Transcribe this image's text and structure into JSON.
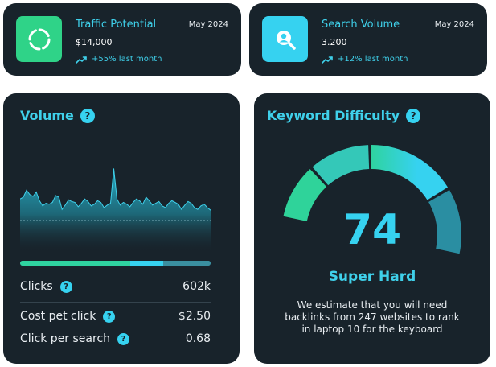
{
  "cards": [
    {
      "icon": "ring-progress-icon",
      "title": "Traffic Potential",
      "date": "May 2024",
      "value": "$14,000",
      "trend": "+55% last month",
      "trend_icon": "trend-up-icon"
    },
    {
      "icon": "search-icon",
      "title": "Search Volume",
      "date": "May 2024",
      "value": "3.200",
      "trend": "+12% last month",
      "trend_icon": "trend-up-icon"
    }
  ],
  "volume": {
    "title": "Volume",
    "help_icon": "?",
    "metrics": [
      {
        "label": "Clicks",
        "value": "602k"
      },
      {
        "label": "Cost pet click",
        "value": "$2.50"
      },
      {
        "label": "Click per search",
        "value": "0.68"
      }
    ],
    "progress": [
      0.58,
      0.17,
      0.25
    ],
    "colors": {
      "accent": "#36d2f0",
      "green": "#2fd3a0",
      "card": "#18232b"
    }
  },
  "chart_data": {
    "type": "area",
    "title": "",
    "xlabel": "",
    "ylabel": "",
    "values": [
      60,
      62,
      70,
      65,
      63,
      68,
      58,
      52,
      55,
      54,
      56,
      64,
      62,
      48,
      53,
      59,
      57,
      56,
      51,
      55,
      60,
      57,
      52,
      54,
      58,
      56,
      50,
      53,
      55,
      95,
      60,
      53,
      56,
      54,
      51,
      56,
      60,
      58,
      54,
      62,
      58,
      53,
      55,
      57,
      52,
      50,
      55,
      58,
      56,
      54,
      48,
      53,
      57,
      55,
      50,
      48,
      52,
      54,
      50,
      47
    ],
    "ylim": [
      0,
      100
    ],
    "grid": false
  },
  "keyword_difficulty": {
    "title": "Keyword Difficulty",
    "help_icon": "?",
    "score": "74",
    "score_value": 74,
    "label": "Super Hard",
    "description": "We estimate that you will need backlinks from 247 websites to rank in laptop  10 for the keyboard"
  }
}
